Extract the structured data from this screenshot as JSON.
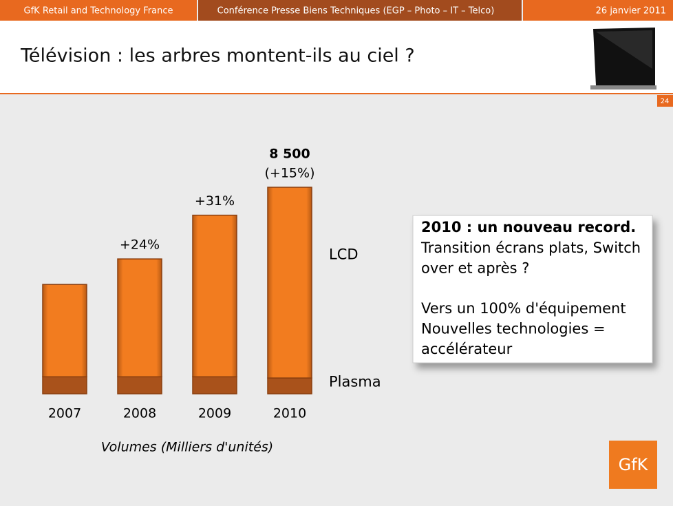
{
  "header": {
    "left": "GfK Retail and Technology France",
    "center": "Conférence Presse Biens Techniques (EGP – Photo – IT – Telco)",
    "right": "26 janvier 2011"
  },
  "title": "Télévision : les arbres montent-ils au ciel ?",
  "slide_number": "24",
  "chart_data": {
    "type": "bar",
    "stacked": true,
    "categories": [
      "2007",
      "2008",
      "2009",
      "2010"
    ],
    "series": [
      {
        "name": "Plasma",
        "color": "#a9521b",
        "values": [
          700,
          700,
          700,
          650
        ]
      },
      {
        "name": "LCD",
        "color": "#f27c1f",
        "values": [
          3800,
          4850,
          6650,
          7850
        ]
      }
    ],
    "growth_labels": [
      null,
      "+24%",
      "+31%",
      "(+15%)"
    ],
    "total_label": "8 500",
    "x_label": "Volumes (Milliers d'unités)"
  },
  "text_box": {
    "heading": "2010 : un nouveau record.",
    "paragraphs": [
      [
        "Transition écrans plats, Switch",
        "over et après ?"
      ],
      [
        "Vers un 100% d'équipement",
        "Nouvelles technologies =",
        "accélérateur"
      ]
    ]
  },
  "logo": "GfK"
}
